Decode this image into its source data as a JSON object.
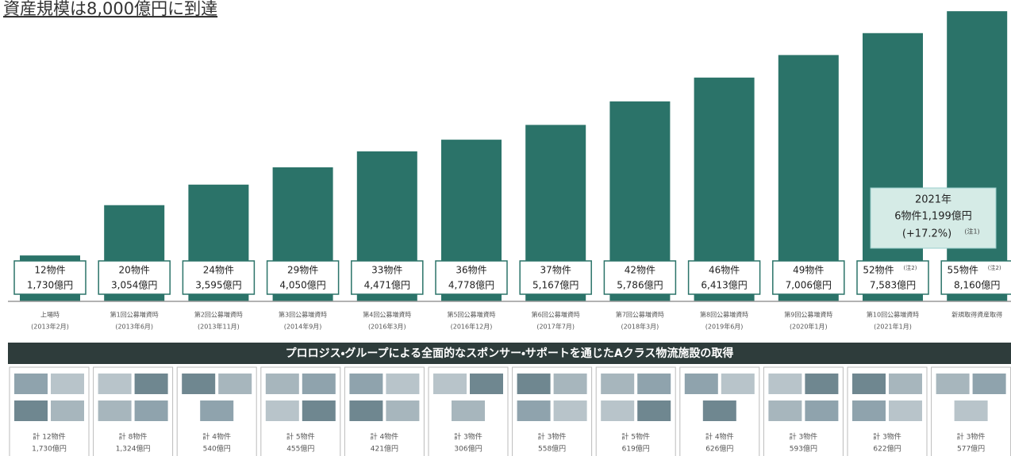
{
  "chart_data": {
    "type": "bar",
    "title": "資産規模は8,000億円に到達",
    "categories": [
      "上場時",
      "第1回公募増資時",
      "第2回公募増資時",
      "第3回公募増資時",
      "第4回公募増資時",
      "第5回公募増資時",
      "第6回公募増資時",
      "第7回公募増資時",
      "第8回公募増資時",
      "第9回公募増資時",
      "第10回公募増資時",
      "新規取得資産取得"
    ],
    "category_dates": [
      "(2013年2月)",
      "(2013年6月)",
      "(2013年11月)",
      "(2014年9月)",
      "(2016年3月)",
      "(2016年12月)",
      "(2017年7月)",
      "(2018年3月)",
      "(2019年6月)",
      "(2020年1月)",
      "(2021年1月)",
      null
    ],
    "values": [
      1730,
      3054,
      3595,
      4050,
      4471,
      4778,
      5167,
      5786,
      6413,
      7006,
      7583,
      8160
    ],
    "value_labels": [
      "1,730億円",
      "3,054億円",
      "3,595億円",
      "4,050億円",
      "4,471億円",
      "4,778億円",
      "5,167億円",
      "5,786億円",
      "6,413億円",
      "7,006億円",
      "7,583億円",
      "8,160億円"
    ],
    "property_labels": [
      "12物件",
      "20物件",
      "24物件",
      "29物件",
      "33物件",
      "36物件",
      "37物件",
      "42物件",
      "46物件",
      "49物件",
      "52物件",
      "55物件"
    ],
    "property_notes": [
      null,
      null,
      null,
      null,
      null,
      null,
      null,
      null,
      null,
      null,
      "(注2)",
      "(注2)"
    ],
    "color": "#2b7369",
    "annotation": {
      "year": "2021年",
      "text": "6物件1,199億円",
      "change": "(+17.2%)",
      "note": "(注1)"
    }
  },
  "banner": "プロロジス・グループによる全面的なスポンサー・サポートを通じたAクラス物流施設の取得",
  "acquisitions": [
    {
      "count": "計 12物件",
      "amount": "1,730億円"
    },
    {
      "count": "計 8物件",
      "amount": "1,324億円"
    },
    {
      "count": "計 4物件",
      "amount": "540億円"
    },
    {
      "count": "計 5物件",
      "amount": "455億円"
    },
    {
      "count": "計 4物件",
      "amount": "421億円"
    },
    {
      "count": "計 3物件",
      "amount": "306億円"
    },
    {
      "count": "計 3物件",
      "amount": "558億円"
    },
    {
      "count": "計 5物件",
      "amount": "619億円"
    },
    {
      "count": "計 4物件",
      "amount": "626億円"
    },
    {
      "count": "計 3物件",
      "amount": "593億円"
    },
    {
      "count": "計 3物件",
      "amount": "622億円"
    },
    {
      "count": "計 3物件",
      "amount": "577億円"
    }
  ]
}
